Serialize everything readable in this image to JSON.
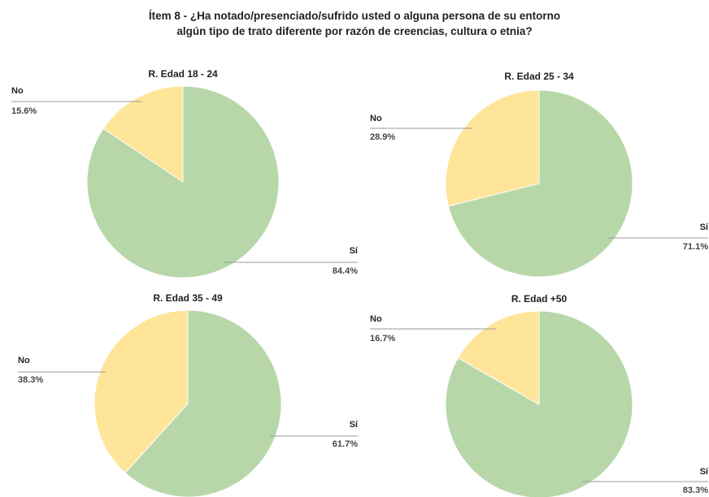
{
  "page": {
    "title_line1": "Ítem 8 - ¿Ha notado/presenciado/sufrido usted o alguna persona de su entorno",
    "title_line2": "algún tipo de trato diferente por razón de creencias, cultura o etnia?"
  },
  "colors": {
    "si": "#b7d7a8",
    "no": "#ffe599",
    "leader": "#999999",
    "text": "#222222",
    "label_text": "#444444"
  },
  "chart_data": [
    {
      "type": "pie",
      "title": "R. Edad 18 - 24",
      "slices": [
        {
          "label": "Sí",
          "value": 84.4,
          "display": "84.4%",
          "color": "#b7d7a8"
        },
        {
          "label": "No",
          "value": 15.6,
          "display": "15.6%",
          "color": "#ffe599"
        }
      ]
    },
    {
      "type": "pie",
      "title": "R. Edad 25 - 34",
      "slices": [
        {
          "label": "Sí",
          "value": 71.1,
          "display": "71.1%",
          "color": "#b7d7a8"
        },
        {
          "label": "No",
          "value": 28.9,
          "display": "28.9%",
          "color": "#ffe599"
        }
      ]
    },
    {
      "type": "pie",
      "title": "R. Edad 35 - 49",
      "slices": [
        {
          "label": "Sí",
          "value": 61.7,
          "display": "61.7%",
          "color": "#b7d7a8"
        },
        {
          "label": "No",
          "value": 38.3,
          "display": "38.3%",
          "color": "#ffe599"
        }
      ]
    },
    {
      "type": "pie",
      "title": "R. Edad +50",
      "slices": [
        {
          "label": "Sí",
          "value": 83.3,
          "display": "83.3%",
          "color": "#b7d7a8"
        },
        {
          "label": "No",
          "value": 16.7,
          "display": "16.7%",
          "color": "#ffe599"
        }
      ]
    }
  ]
}
